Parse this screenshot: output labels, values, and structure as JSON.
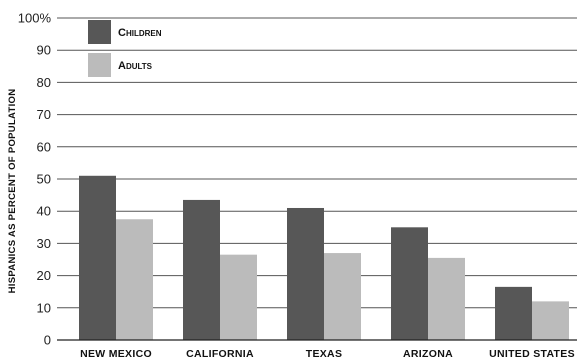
{
  "chart_data": {
    "type": "bar",
    "ylabel": "HISPANICS AS PERCENT OF POPULATION",
    "xlabel": "",
    "ylim": [
      0,
      100
    ],
    "yticks": [
      "0",
      "10",
      "20",
      "30",
      "40",
      "50",
      "60",
      "70",
      "80",
      "90",
      "100%"
    ],
    "grid": true,
    "legend_position": "top-left",
    "categories": [
      "NEW MEXICO",
      "CALIFORNIA",
      "TEXAS",
      "ARIZONA",
      "UNITED STATES"
    ],
    "series": [
      {
        "name": "Children",
        "color": "#575757",
        "values": [
          51,
          43.5,
          41,
          35,
          16.5
        ]
      },
      {
        "name": "Adults",
        "color": "#bbbbbb",
        "values": [
          37.5,
          26.5,
          27,
          25.5,
          12
        ]
      }
    ]
  }
}
